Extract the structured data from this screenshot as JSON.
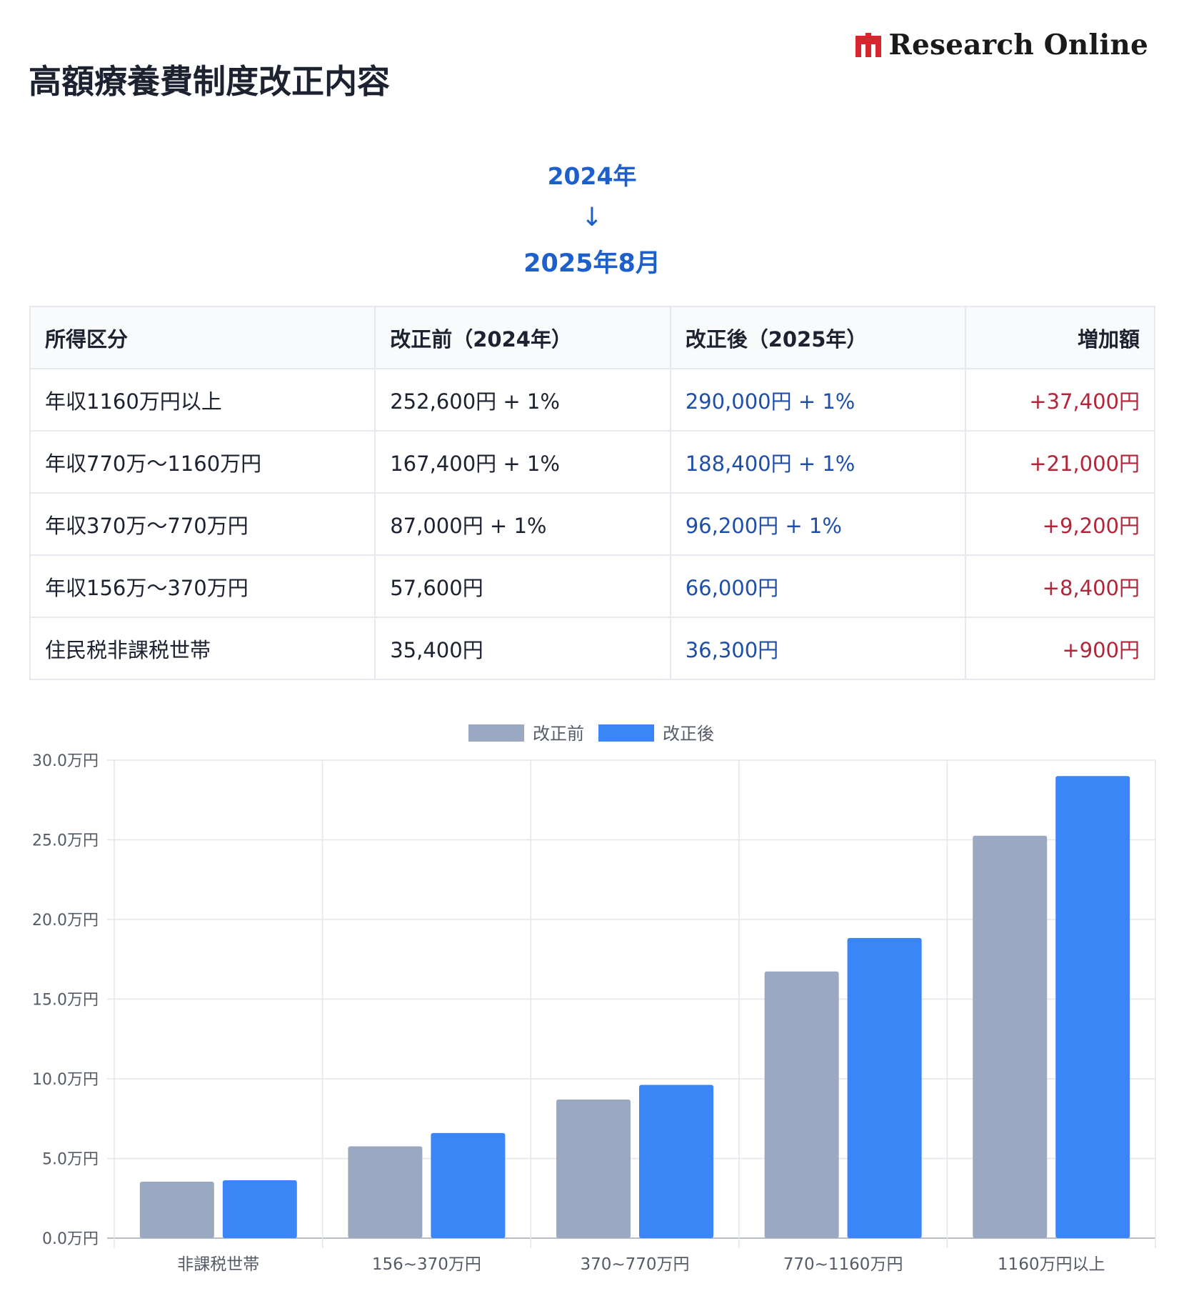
{
  "brand": {
    "name": "Research Online",
    "accent": "#d7262f"
  },
  "title": "高額療養費制度改正内容",
  "period": {
    "from": "2024年",
    "arrow": "↓",
    "to": "2025年8月"
  },
  "table": {
    "headers": [
      "所得区分",
      "改正前（2024年）",
      "改正後（2025年）",
      "増加額"
    ],
    "rows": [
      {
        "category": "年収1160万円以上",
        "before": "252,600円 + 1%",
        "after": "290,000円 + 1%",
        "increase": "+37,400円"
      },
      {
        "category": "年収770万～1160万円",
        "before": "167,400円 + 1%",
        "after": "188,400円 + 1%",
        "increase": "+21,000円"
      },
      {
        "category": "年収370万～770万円",
        "before": "87,000円 + 1%",
        "after": "96,200円 + 1%",
        "increase": "+9,200円"
      },
      {
        "category": "年収156万～370万円",
        "before": "57,600円",
        "after": "66,000円",
        "increase": "+8,400円"
      },
      {
        "category": "住民税非課税世帯",
        "before": "35,400円",
        "after": "36,300円",
        "increase": "+900円"
      }
    ]
  },
  "colors": {
    "before": "#9aa8c1",
    "after": "#3b86f6",
    "increase": "#b3263a",
    "after_text": "#1f4fa8",
    "period": "#1d5fcb"
  },
  "chart_data": {
    "type": "bar",
    "categories": [
      "非課税世帯",
      "156~370万円",
      "370~770万円",
      "770~1160万円",
      "1160万円以上"
    ],
    "series": [
      {
        "name": "改正前",
        "values": [
          3.54,
          5.76,
          8.7,
          16.74,
          25.26
        ]
      },
      {
        "name": "改正後",
        "values": [
          3.63,
          6.6,
          9.62,
          18.84,
          29.0
        ]
      }
    ],
    "y_ticks": [
      "0.0万円",
      "5.0万円",
      "10.0万円",
      "15.0万円",
      "20.0万円",
      "25.0万円",
      "30.0万円"
    ],
    "ylim": [
      0,
      30
    ],
    "grid": true,
    "legend_position": "top"
  }
}
